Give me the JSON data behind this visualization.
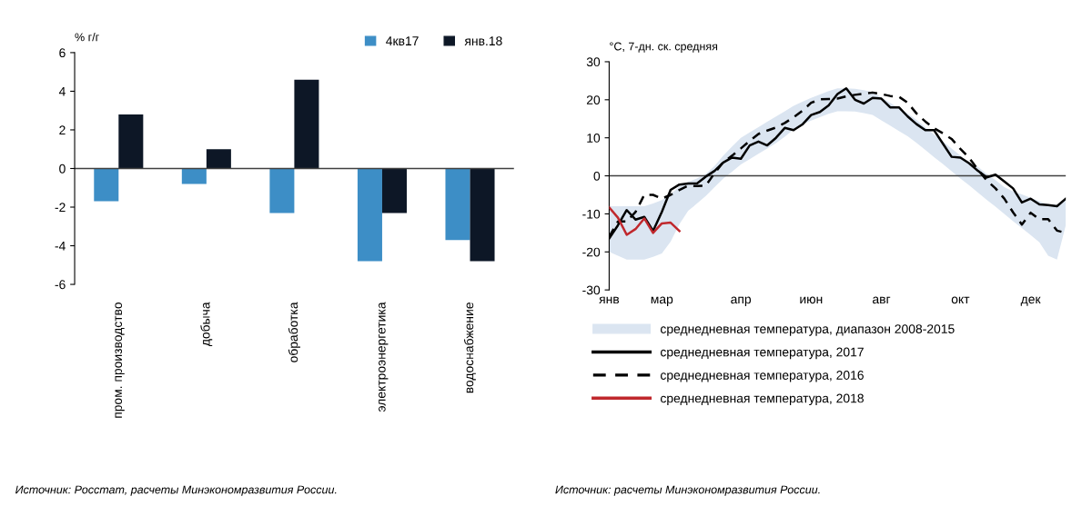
{
  "chart_data": [
    {
      "type": "bar",
      "ylabel": "% г/г",
      "categories": [
        "пром. производство",
        "добыча",
        "обработка",
        "электроэнергетика",
        "водоснабжение"
      ],
      "series": [
        {
          "name": "4кв17",
          "color": "#3d8ec6",
          "values": [
            -1.7,
            -0.8,
            -2.3,
            -4.8,
            -3.7
          ]
        },
        {
          "name": "янв.18",
          "color": "#0d1726",
          "values": [
            2.8,
            1.0,
            4.6,
            -2.3,
            -4.8
          ]
        }
      ],
      "ylim": [
        -6,
        6
      ],
      "yticks": [
        -6,
        -4,
        -2,
        0,
        2,
        4,
        6
      ],
      "ref_lines": [
        {
          "axis": "y",
          "value": 0,
          "color": "#404040"
        }
      ],
      "legend": "top right",
      "grid": false,
      "annotations": [
        "Источник: Росстат, расчеты Минэкономразвития России."
      ]
    },
    {
      "type": "line",
      "ylabel": "°C, 7-дн. ск. средняя",
      "categories": [
        "янв",
        null,
        null,
        null,
        null,
        null,
        "мар",
        null,
        null,
        null,
        null,
        null,
        null,
        null,
        null,
        "апр",
        null,
        null,
        null,
        null,
        null,
        null,
        null,
        "июн",
        null,
        null,
        null,
        null,
        null,
        null,
        null,
        "авг",
        null,
        null,
        null,
        null,
        null,
        null,
        null,
        null,
        "окт",
        null,
        null,
        null,
        null,
        null,
        null,
        null,
        "дек",
        null,
        null,
        null,
        null
      ],
      "ylim": [
        -30,
        30
      ],
      "yticks": [
        -30,
        -20,
        -10,
        0,
        10,
        20,
        30
      ],
      "ref_lines": [
        {
          "axis": "y",
          "value": 0,
          "color": "#404040"
        }
      ],
      "series": [
        {
          "name": "среднедневная температура, диапазон 2008-2015",
          "type": "area",
          "color": "#dbe5f1",
          "values": [
            null,
            null,
            null,
            null,
            null,
            null,
            null,
            null,
            null,
            null,
            null,
            null,
            null,
            null,
            null,
            null,
            null,
            null,
            null,
            null,
            null,
            null,
            null,
            null,
            null,
            null,
            null,
            null,
            null,
            null,
            null,
            null,
            null,
            null,
            null,
            null,
            null,
            null,
            null,
            null,
            null,
            null,
            null,
            null,
            null,
            null,
            null,
            null,
            null,
            null,
            null,
            null,
            null
          ],
          "lower": [
            -20,
            -21,
            -22,
            -22,
            -22,
            -21.3,
            -20.4,
            -17.3,
            -12.7,
            -9.2,
            -7.3,
            -5.3,
            -3,
            -0.7,
            1.1,
            3,
            4.4,
            5.8,
            7.2,
            8.6,
            10.3,
            12.2,
            13.5,
            14.5,
            15.4,
            16.3,
            17,
            17,
            16.9,
            16.5,
            16,
            14.6,
            13.2,
            11.8,
            10.4,
            8.7,
            6.8,
            4.9,
            3.1,
            1.2,
            -0.7,
            -2.5,
            -4.4,
            -6.3,
            -8.1,
            -10,
            -11.9,
            -13.7,
            -15.6,
            -17.5,
            -21,
            -22,
            -13
          ],
          "upper": [
            -8,
            -8,
            -8,
            -8,
            -8,
            -7.3,
            -6.4,
            -4.9,
            -2.8,
            -1.6,
            -0.7,
            0.5,
            2.6,
            5.3,
            7.7,
            10,
            11.4,
            12.8,
            14.2,
            15.6,
            17,
            18.4,
            19.5,
            20.5,
            21.4,
            22.3,
            23,
            23,
            22.9,
            22.5,
            22,
            20.6,
            19.2,
            17.8,
            16.4,
            14.7,
            12.8,
            10.9,
            9.1,
            7.2,
            5.3,
            3.5,
            2.4,
            0.5,
            -1.1,
            -3,
            -4.1,
            -4.9,
            -5.8,
            -6.7,
            -7.5,
            -7.6,
            -6
          ]
        },
        {
          "name": "среднедневная температура, 2017",
          "color": "#000000",
          "line_style": "solid",
          "values": [
            -16.5,
            -13,
            -9,
            -11.5,
            -10.8,
            -14.5,
            -9.5,
            -3.7,
            -2.3,
            -2,
            -2,
            -0.2,
            1.3,
            3.5,
            4.8,
            4.5,
            8,
            9,
            8,
            10,
            12.6,
            12,
            13.5,
            16,
            16.8,
            18.5,
            21.5,
            23,
            20,
            19,
            20.5,
            20.3,
            18,
            18,
            15.6,
            13.6,
            12,
            12,
            8.5,
            5,
            4.8,
            3.3,
            1.3,
            -0.4,
            0.3,
            -1.5,
            -3.3,
            -7,
            -6,
            -7.5,
            -7.7,
            -8,
            -6
          ]
        },
        {
          "name": "среднедневная температура, 2016",
          "color": "#000000",
          "line_style": "dashed",
          "values": [
            -16,
            -12,
            -12,
            -9.5,
            -5,
            -5,
            -6,
            -5,
            -3.7,
            -2.6,
            -2.7,
            -2.6,
            0.7,
            3.6,
            5.3,
            7.2,
            9.2,
            11,
            11.9,
            12.7,
            13.9,
            15.4,
            17.1,
            19.2,
            20.1,
            20.2,
            20.3,
            20.9,
            21.3,
            21.6,
            21.9,
            21.5,
            21,
            20.8,
            19.2,
            16.4,
            14.3,
            12.5,
            11.2,
            9.7,
            7.1,
            4.7,
            1.6,
            -1.2,
            -3.3,
            -6,
            -9.6,
            -12.8,
            -9.7,
            -11.4,
            -11.4,
            -14.4,
            -15
          ]
        },
        {
          "name": "среднедневная температура, 2018",
          "color": "#c0282d",
          "line_style": "solid",
          "values": [
            -8.3,
            -11,
            -15.5,
            -14,
            -11.2,
            -15,
            -12.5,
            -12.3,
            -14.5,
            null,
            null,
            null,
            null,
            null,
            null,
            null,
            null,
            null,
            null,
            null,
            null,
            null,
            null,
            null,
            null,
            null,
            null,
            null,
            null,
            null,
            null,
            null,
            null,
            null,
            null,
            null,
            null,
            null,
            null,
            null,
            null,
            null,
            null,
            null,
            null,
            null,
            null,
            null,
            null,
            null,
            null,
            null,
            null
          ]
        }
      ],
      "legend": "bottom",
      "grid": false,
      "annotations": [
        "Источник: расчеты Минэкономразвития России."
      ]
    }
  ]
}
